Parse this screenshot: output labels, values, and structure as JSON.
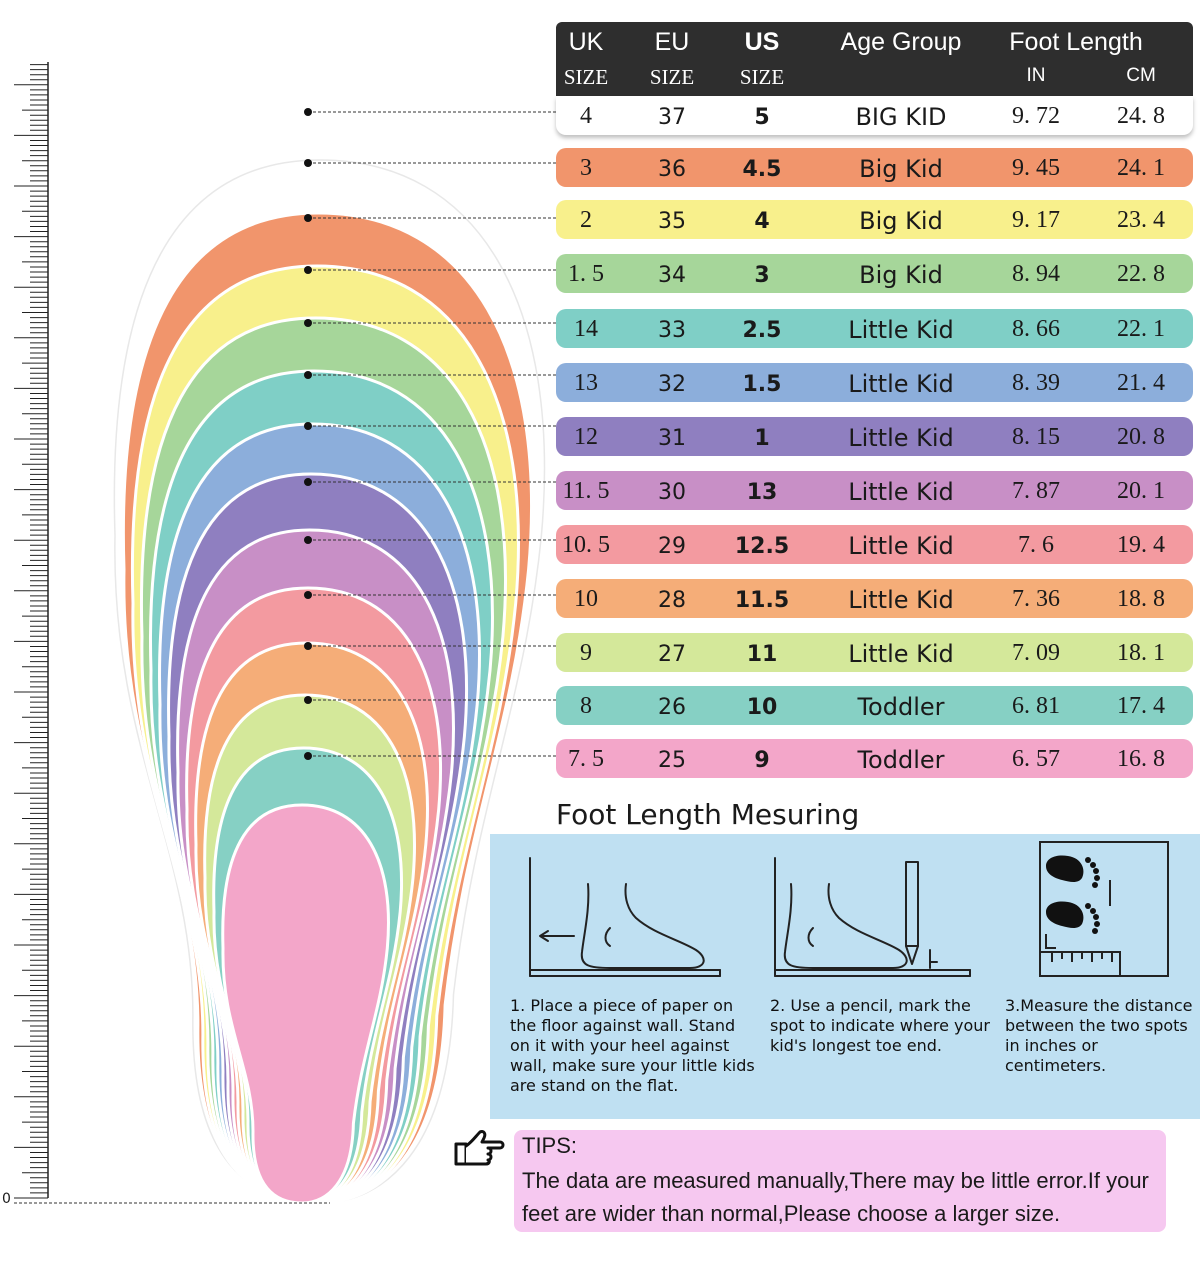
{
  "table": {
    "header": {
      "uk": "UK",
      "eu": "EU",
      "us": "US",
      "age_group": "Age Group",
      "foot_length": "Foot Length",
      "uk_sub": "SIZE",
      "eu_sub": "SIZE",
      "us_sub": "SIZE",
      "in_sub": "IN",
      "cm_sub": "CM"
    },
    "rows": [
      {
        "uk": "4",
        "eu": "37",
        "us": "5",
        "age": "BIG KID",
        "in": "9. 72",
        "cm": "24. 8",
        "color": "#ffffff"
      },
      {
        "uk": "3",
        "eu": "36",
        "us": "4.5",
        "age": "Big Kid",
        "in": "9. 45",
        "cm": "24. 1",
        "color": "#f1956c"
      },
      {
        "uk": "2",
        "eu": "35",
        "us": "4",
        "age": "Big Kid",
        "in": "9. 17",
        "cm": "23. 4",
        "color": "#f8f08c"
      },
      {
        "uk": "1. 5",
        "eu": "34",
        "us": "3",
        "age": "Big Kid",
        "in": "8. 94",
        "cm": "22. 8",
        "color": "#a6d69a"
      },
      {
        "uk": "14",
        "eu": "33",
        "us": "2.5",
        "age": "Little Kid",
        "in": "8. 66",
        "cm": "22. 1",
        "color": "#7fcfc6"
      },
      {
        "uk": "13",
        "eu": "32",
        "us": "1.5",
        "age": "Little Kid",
        "in": "8. 39",
        "cm": "21. 4",
        "color": "#8caedb"
      },
      {
        "uk": "12",
        "eu": "31",
        "us": "1",
        "age": "Little Kid",
        "in": "8. 15",
        "cm": "20. 8",
        "color": "#8f7fc0"
      },
      {
        "uk": "11. 5",
        "eu": "30",
        "us": "13",
        "age": "Little Kid",
        "in": "7. 87",
        "cm": "20. 1",
        "color": "#c88fc6"
      },
      {
        "uk": "10. 5",
        "eu": "29",
        "us": "12.5",
        "age": "Little Kid",
        "in": "7. 6",
        "cm": "19. 4",
        "color": "#f39aa0"
      },
      {
        "uk": "10",
        "eu": "28",
        "us": "11.5",
        "age": "Little Kid",
        "in": "7. 36",
        "cm": "18. 8",
        "color": "#f5ad78"
      },
      {
        "uk": "9",
        "eu": "27",
        "us": "11",
        "age": "Little Kid",
        "in": "7. 09",
        "cm": "18. 1",
        "color": "#d4e89a"
      },
      {
        "uk": "8",
        "eu": "26",
        "us": "10",
        "age": "Toddler",
        "in": "6. 81",
        "cm": "17. 4",
        "color": "#86d0c4"
      },
      {
        "uk": "7. 5",
        "eu": "25",
        "us": "9",
        "age": "Toddler",
        "in": "6. 57",
        "cm": "16. 8",
        "color": "#f3a6c9"
      }
    ]
  },
  "measuring": {
    "title": "Foot Length Mesuring",
    "steps": [
      "1. Place a piece of paper on the floor against wall. Stand on it with your heel against wall, make sure your little kids are stand on the flat.",
      "2. Use a pencil, mark the spot to indicate where your kid's longest toe end.",
      "3.Measure the distance between the two spots in inches or centimeters."
    ]
  },
  "tips": {
    "title": "TIPS:",
    "text": "The data are measured manually,There may be little error.If your feet are wider than normal,Please choose a larger size."
  },
  "ruler": {
    "zero_label": "0"
  },
  "icons": [
    "pointing-hand-icon",
    "foot-against-wall-icon",
    "pencil-mark-icon",
    "footprints-ruler-icon"
  ]
}
